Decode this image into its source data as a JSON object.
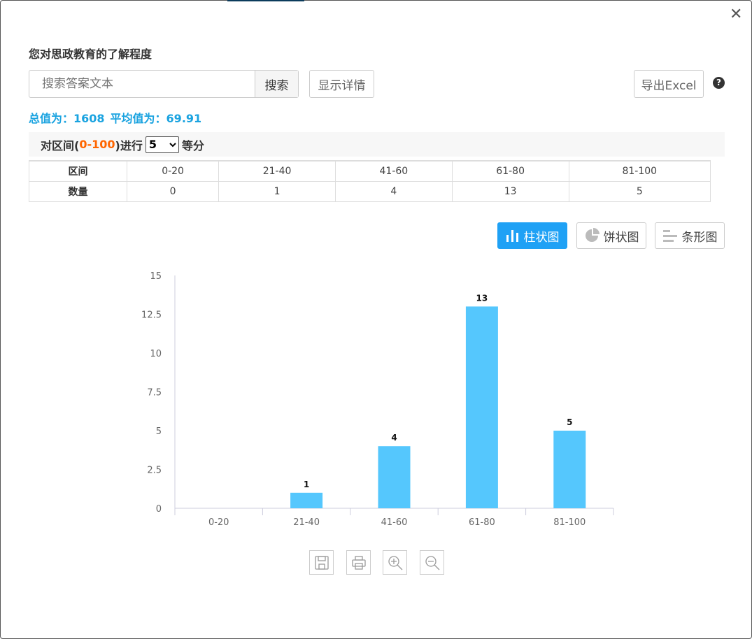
{
  "dialog": {
    "title": "您对思政教育的了解程度",
    "close_icon": "close-icon"
  },
  "toolbar": {
    "search_placeholder": "搜索答案文本",
    "search_label": "搜索",
    "details_label": "显示详情",
    "export_label": "导出Excel",
    "help_icon": "question-circle-icon"
  },
  "stats": {
    "total": "总值为：1608",
    "average": "平均值为：69.91"
  },
  "division": {
    "prefix": "对区间(",
    "range": "0-100",
    "middle": ")进行",
    "value": "5",
    "suffix": "等分"
  },
  "table": {
    "row_headers": [
      "区间",
      "数量"
    ],
    "ranges": [
      "0-20",
      "21-40",
      "41-60",
      "61-80",
      "81-100"
    ],
    "counts": [
      "0",
      "1",
      "4",
      "13",
      "5"
    ]
  },
  "chart_types": [
    {
      "label": "柱状图",
      "icon": "bar-chart-icon",
      "active": true
    },
    {
      "label": "饼状图",
      "icon": "pie-chart-icon",
      "active": false
    },
    {
      "label": "条形图",
      "icon": "horizontal-bar-icon",
      "active": false
    }
  ],
  "chart_tools": [
    "save-icon",
    "print-icon",
    "zoom-in-icon",
    "zoom-out-icon"
  ],
  "chart_data": {
    "type": "bar",
    "categories": [
      "0-20",
      "21-40",
      "41-60",
      "61-80",
      "81-100"
    ],
    "values": [
      0,
      1,
      4,
      13,
      5
    ],
    "ylim": [
      0,
      15
    ],
    "yticks": [
      "0",
      "2.5",
      "5",
      "7.5",
      "10",
      "12.5",
      "15"
    ],
    "bar_color": "#55c7fd",
    "grid": false
  }
}
